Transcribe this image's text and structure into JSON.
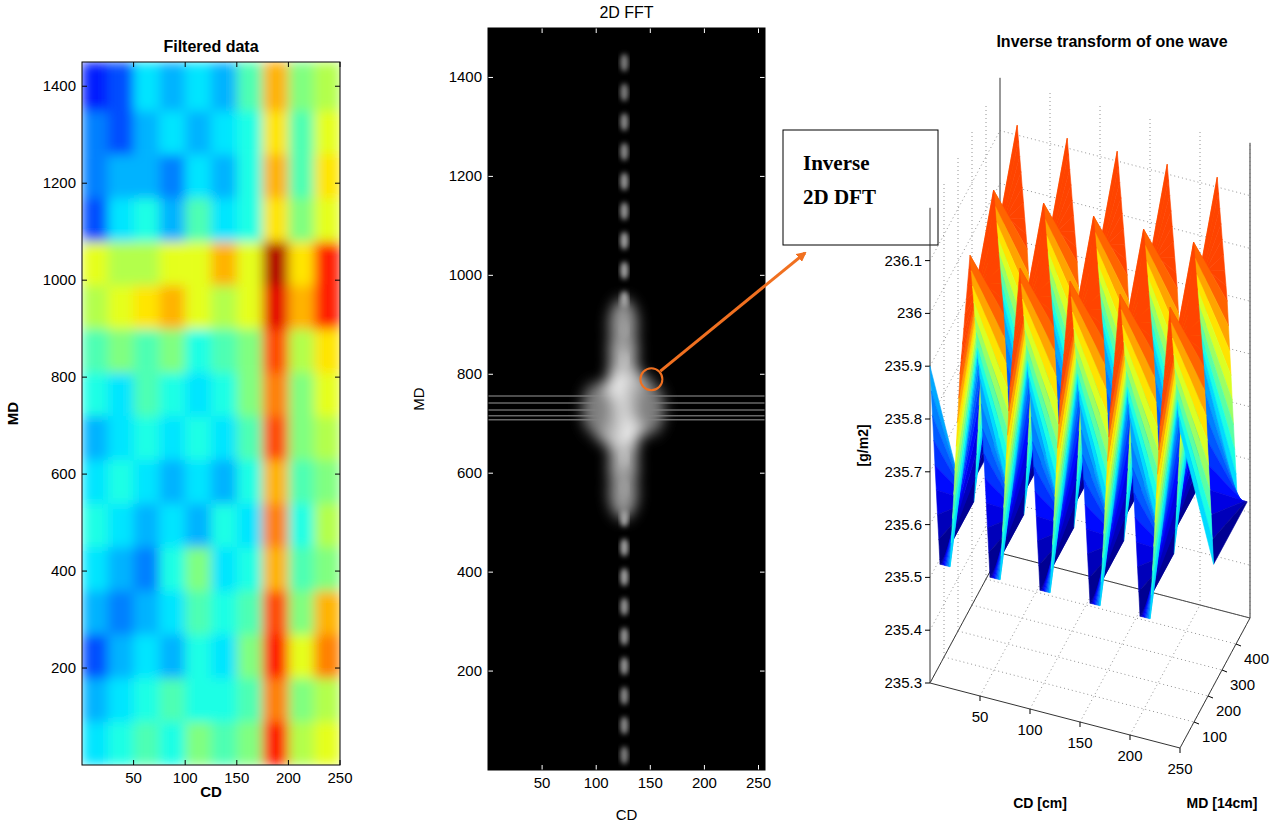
{
  "chart_data": [
    {
      "type": "heatmap",
      "title": "Filtered data",
      "xlabel": "CD",
      "ylabel": "MD",
      "color": "jet",
      "xlim": [
        0,
        250
      ],
      "ylim": [
        0,
        1450
      ],
      "xticks": [
        50,
        100,
        150,
        200,
        250
      ],
      "yticks": [
        200,
        400,
        600,
        800,
        1000,
        1200,
        1400
      ],
      "x_edges": [
        0,
        25,
        50,
        75,
        100,
        125,
        150,
        175,
        200,
        225,
        250
      ],
      "y_edges": [
        0,
        90,
        180,
        270,
        360,
        450,
        540,
        630,
        720,
        810,
        900,
        990,
        1080,
        1170,
        1260,
        1350,
        1450
      ],
      "cells": [
        [
          0.35,
          0.4,
          0.45,
          0.4,
          0.5,
          0.45,
          0.5,
          0.85,
          0.55,
          0.6
        ],
        [
          0.3,
          0.35,
          0.4,
          0.45,
          0.4,
          0.4,
          0.45,
          0.75,
          0.5,
          0.55
        ],
        [
          0.2,
          0.3,
          0.35,
          0.3,
          0.4,
          0.35,
          0.5,
          0.85,
          0.6,
          0.75
        ],
        [
          0.3,
          0.25,
          0.3,
          0.35,
          0.45,
          0.4,
          0.45,
          0.8,
          0.5,
          0.7
        ],
        [
          0.35,
          0.3,
          0.25,
          0.4,
          0.5,
          0.35,
          0.4,
          0.7,
          0.45,
          0.5
        ],
        [
          0.4,
          0.35,
          0.3,
          0.35,
          0.3,
          0.4,
          0.35,
          0.75,
          0.4,
          0.55
        ],
        [
          0.35,
          0.4,
          0.35,
          0.3,
          0.35,
          0.3,
          0.4,
          0.7,
          0.45,
          0.5
        ],
        [
          0.3,
          0.35,
          0.4,
          0.35,
          0.4,
          0.35,
          0.45,
          0.8,
          0.5,
          0.55
        ],
        [
          0.4,
          0.35,
          0.45,
          0.4,
          0.35,
          0.4,
          0.5,
          0.75,
          0.5,
          0.6
        ],
        [
          0.45,
          0.5,
          0.45,
          0.5,
          0.4,
          0.45,
          0.5,
          0.8,
          0.55,
          0.65
        ],
        [
          0.55,
          0.6,
          0.65,
          0.7,
          0.6,
          0.55,
          0.6,
          0.9,
          0.7,
          0.85
        ],
        [
          0.6,
          0.55,
          0.55,
          0.6,
          0.6,
          0.7,
          0.6,
          0.95,
          0.65,
          0.85
        ],
        [
          0.2,
          0.35,
          0.4,
          0.3,
          0.45,
          0.35,
          0.4,
          0.65,
          0.5,
          0.6
        ],
        [
          0.25,
          0.3,
          0.3,
          0.25,
          0.35,
          0.3,
          0.4,
          0.7,
          0.45,
          0.65
        ],
        [
          0.25,
          0.2,
          0.3,
          0.35,
          0.3,
          0.35,
          0.4,
          0.65,
          0.45,
          0.6
        ],
        [
          0.15,
          0.2,
          0.35,
          0.3,
          0.35,
          0.3,
          0.45,
          0.7,
          0.5,
          0.55
        ]
      ]
    },
    {
      "type": "image",
      "title": "2D FFT",
      "xlabel": "CD",
      "ylabel": "MD",
      "color": "gray",
      "xlim": [
        0,
        256
      ],
      "ylim": [
        0,
        1500
      ],
      "xticks": [
        50,
        100,
        150,
        200,
        250
      ],
      "yticks": [
        200,
        400,
        600,
        800,
        1000,
        1200,
        1400
      ],
      "line_spots": {
        "cd": [
          126,
          126,
          126,
          126,
          126,
          126,
          126,
          126,
          126,
          126,
          126,
          126,
          126,
          126,
          126,
          126,
          126,
          126,
          126,
          126,
          126,
          126,
          126,
          126
        ],
        "md": [
          30,
          90,
          150,
          210,
          270,
          330,
          390,
          450,
          510,
          570,
          630,
          690,
          770,
          830,
          890,
          950,
          1010,
          1070,
          1130,
          1190,
          1250,
          1310,
          1370,
          1430
        ],
        "intensity": [
          0.5,
          0.55,
          0.55,
          0.6,
          0.6,
          0.6,
          0.65,
          0.65,
          0.7,
          0.7,
          0.8,
          0.9,
          0.9,
          0.8,
          0.75,
          0.7,
          0.65,
          0.65,
          0.6,
          0.6,
          0.55,
          0.55,
          0.5,
          0.5
        ]
      },
      "blob_spots": {
        "cd": [
          125,
          120,
          130,
          115,
          135,
          125,
          125,
          110,
          140,
          100,
          150,
          125,
          125,
          125,
          125
        ],
        "md": [
          730,
          700,
          760,
          740,
          720,
          800,
          660,
          710,
          750,
          730,
          730,
          850,
          610,
          900,
          560
        ],
        "intensity": [
          1,
          1,
          1,
          0.9,
          0.9,
          0.9,
          0.9,
          0.7,
          0.7,
          0.5,
          0.5,
          0.7,
          0.7,
          0.6,
          0.6
        ]
      },
      "bands_md": [
        708,
        716,
        728,
        742,
        756
      ],
      "annotation": {
        "text": [
          "Inverse",
          "2D DFT"
        ],
        "cd": 151,
        "md": 790
      }
    },
    {
      "type": "surface",
      "title": "Inverse transform of one wave",
      "xlabel": "CD [cm]",
      "ylabel": "MD [14cm]",
      "zlabel": "[g/m2]",
      "color": "jet",
      "xlim": [
        0,
        250
      ],
      "ylim": [
        0,
        500
      ],
      "zlim": [
        235.3,
        236.2
      ],
      "xticks": [
        50,
        100,
        150,
        200,
        250
      ],
      "yticks": [
        100,
        200,
        300,
        400
      ],
      "zticks": [
        235.3,
        235.4,
        235.5,
        235.6,
        235.7,
        235.8,
        235.9,
        236,
        236.1
      ],
      "x": [
        0,
        10,
        20,
        30,
        40,
        50,
        60,
        70,
        80,
        90,
        100,
        110,
        120,
        130,
        140,
        150,
        160,
        170,
        180,
        190,
        200,
        210,
        220,
        230,
        240,
        250
      ],
      "y": [
        0,
        240,
        480
      ],
      "z": [
        [
          235.9,
          235.53,
          235.53,
          235.9,
          236.13,
          235.9,
          235.53,
          235.53,
          235.9,
          236.13,
          235.9,
          235.53,
          235.53,
          235.9,
          236.13,
          235.9,
          235.53,
          235.53,
          235.9,
          236.13,
          235.9,
          235.53,
          235.53,
          235.9,
          236.13,
          235.9
        ],
        [
          235.53,
          235.53,
          235.9,
          236.13,
          235.9,
          235.53,
          235.53,
          235.9,
          236.13,
          235.9,
          235.53,
          235.53,
          235.9,
          236.13,
          235.9,
          235.53,
          235.53,
          235.9,
          236.13,
          235.9,
          235.53,
          235.53,
          235.9,
          236.13,
          235.9,
          235.53
        ],
        [
          235.53,
          235.9,
          236.13,
          235.9,
          235.53,
          235.53,
          235.9,
          236.13,
          235.9,
          235.53,
          235.53,
          235.9,
          236.13,
          235.9,
          235.53,
          235.53,
          235.9,
          236.13,
          235.9,
          235.53,
          235.53,
          235.9,
          236.13,
          235.9,
          235.53,
          235.53
        ]
      ]
    }
  ]
}
